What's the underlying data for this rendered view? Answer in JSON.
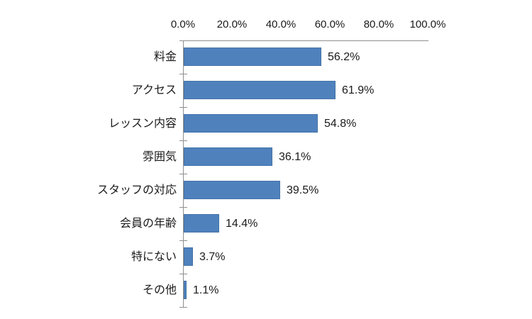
{
  "chart_data": {
    "type": "bar",
    "orientation": "horizontal",
    "title": "",
    "xlabel": "",
    "ylabel": "",
    "xlim": [
      0,
      100
    ],
    "grid": false,
    "legend_position": "none",
    "x_axis_position": "top",
    "categories": [
      "料金",
      "アクセス",
      "レッスン内容",
      "雰囲気",
      "スタッフの対応",
      "会員の年齢",
      "特にない",
      "その他"
    ],
    "values": [
      56.2,
      61.9,
      54.8,
      36.1,
      39.5,
      14.4,
      3.7,
      1.1
    ],
    "value_labels": [
      "56.2%",
      "61.9%",
      "54.8%",
      "36.1%",
      "39.5%",
      "14.4%",
      "3.7%",
      "1.1%"
    ],
    "x_tick_labels": [
      "0.0%",
      "20.0%",
      "40.0%",
      "60.0%",
      "80.0%",
      "100.0%"
    ],
    "x_tick_values": [
      0,
      20,
      40,
      60,
      80,
      100
    ],
    "colors": {
      "bar_fill": "#4F81BD",
      "bar_border": "#4575A7",
      "axis_line": "#8f8f8f",
      "text": "#1a1a1a",
      "background": "#ffffff"
    }
  }
}
